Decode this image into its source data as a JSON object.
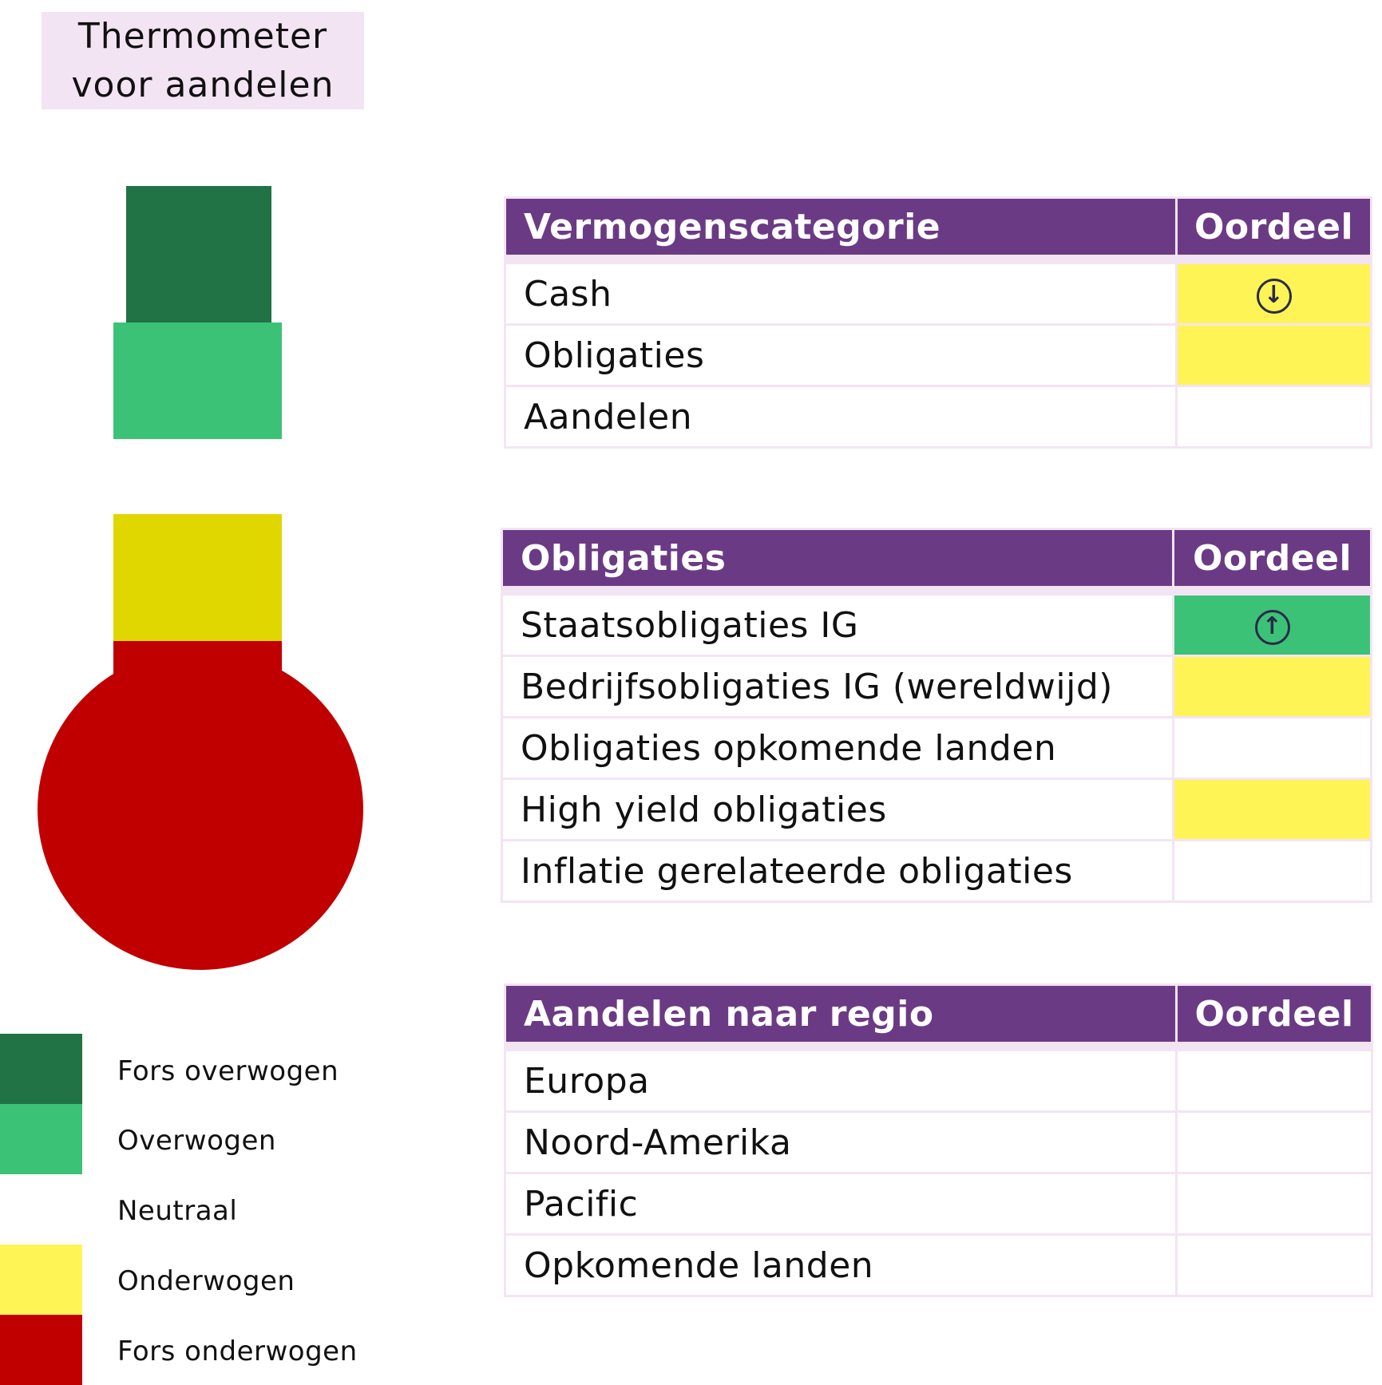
{
  "title": "Thermometer voor aandelen",
  "thermometer": {
    "colors": {
      "fors_overwogen": "#217346",
      "overwogen": "#3cc276",
      "onderwogen_bulb": "#e0d600",
      "fors_onderwogen": "#c00000"
    }
  },
  "legend": [
    {
      "label": "Fors overwogen",
      "color": "#217346"
    },
    {
      "label": "Overwogen",
      "color": "#3cc276"
    },
    {
      "label": "Neutraal",
      "color": "#ffffff"
    },
    {
      "label": "Onderwogen",
      "color": "#fff455"
    },
    {
      "label": "Fors onderwogen",
      "color": "#c00000"
    }
  ],
  "tables": [
    {
      "header": "Vermogenscategorie",
      "rating_header": "Oordeel",
      "rows": [
        {
          "label": "Cash",
          "color": "#fff455",
          "icon": "arrow-down-circle-icon",
          "glyph": "↓"
        },
        {
          "label": "Obligaties",
          "color": "#fff455",
          "icon": "",
          "glyph": ""
        },
        {
          "label": "Aandelen",
          "color": "#ffffff",
          "icon": "",
          "glyph": ""
        }
      ]
    },
    {
      "header": "Obligaties",
      "rating_header": "Oordeel",
      "rows": [
        {
          "label": "Staatsobligaties IG",
          "color": "#3cc276",
          "icon": "arrow-up-circle-icon",
          "glyph": "↑"
        },
        {
          "label": "Bedrijfsobligaties IG (wereldwijd)",
          "color": "#fff455",
          "icon": "",
          "glyph": ""
        },
        {
          "label": "Obligaties opkomende landen",
          "color": "#ffffff",
          "icon": "",
          "glyph": ""
        },
        {
          "label": "High yield obligaties",
          "color": "#fff455",
          "icon": "",
          "glyph": ""
        },
        {
          "label": "Inflatie gerelateerde obligaties",
          "color": "#ffffff",
          "icon": "",
          "glyph": ""
        }
      ]
    },
    {
      "header": "Aandelen naar regio",
      "rating_header": "Oordeel",
      "rows": [
        {
          "label": "Europa",
          "color": "#ffffff",
          "icon": "",
          "glyph": ""
        },
        {
          "label": "Noord-Amerika",
          "color": "#ffffff",
          "icon": "",
          "glyph": ""
        },
        {
          "label": "Pacific",
          "color": "#ffffff",
          "icon": "",
          "glyph": ""
        },
        {
          "label": "Opkomende landen",
          "color": "#ffffff",
          "icon": "",
          "glyph": ""
        }
      ]
    }
  ]
}
